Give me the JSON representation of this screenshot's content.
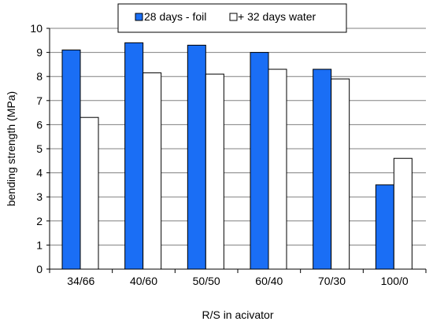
{
  "chart_data": {
    "type": "bar",
    "title": "",
    "xlabel": "R/S in acivator",
    "ylabel": "bending strength (MPa)",
    "ylim": [
      0,
      10
    ],
    "yticks": [
      "0",
      "1",
      "2",
      "3",
      "4",
      "5",
      "6",
      "7",
      "8",
      "9",
      "10"
    ],
    "grid": "horizontal",
    "legend_position": "top",
    "categories": [
      "34/66",
      "40/60",
      "50/50",
      "60/40",
      "70/30",
      "100/0"
    ],
    "series": [
      {
        "name": "28 days - foil",
        "color": "#1a6ef5",
        "values": [
          9.1,
          9.4,
          9.3,
          9.0,
          8.3,
          3.5
        ]
      },
      {
        "name": "+ 32 days water",
        "color": "#ffffff",
        "values": [
          6.3,
          8.15,
          8.1,
          8.3,
          7.9,
          4.6
        ]
      }
    ]
  }
}
